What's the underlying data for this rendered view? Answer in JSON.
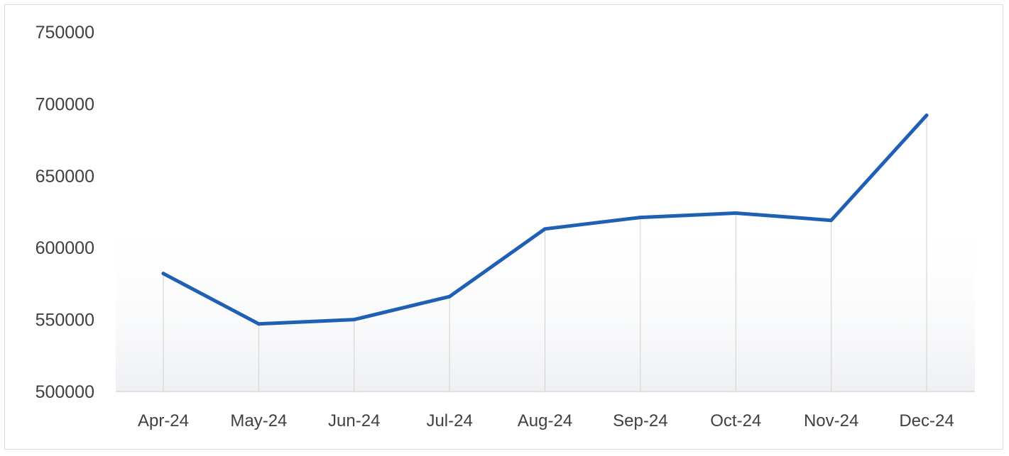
{
  "chart_data": {
    "type": "line",
    "title": "",
    "xlabel": "",
    "ylabel": "",
    "categories": [
      "Apr-24",
      "May-24",
      "Jun-24",
      "Jul-24",
      "Aug-24",
      "Sep-24",
      "Oct-24",
      "Nov-24",
      "Dec-24"
    ],
    "series": [
      {
        "values": [
          582000,
          547000,
          550000,
          566000,
          613000,
          621000,
          624000,
          619000,
          692000
        ],
        "color": "#1f5fb4"
      }
    ],
    "ylim": [
      500000,
      750000
    ],
    "yticks": [
      "500000",
      "550000",
      "600000",
      "650000",
      "700000",
      "750000"
    ],
    "grid": "vertical drop lines at each category",
    "legend": "none",
    "colors": {
      "line": "#1f5fb4",
      "axis": "#d9d9d9",
      "droplines": "#d0d0d0",
      "text": "#404040"
    }
  }
}
